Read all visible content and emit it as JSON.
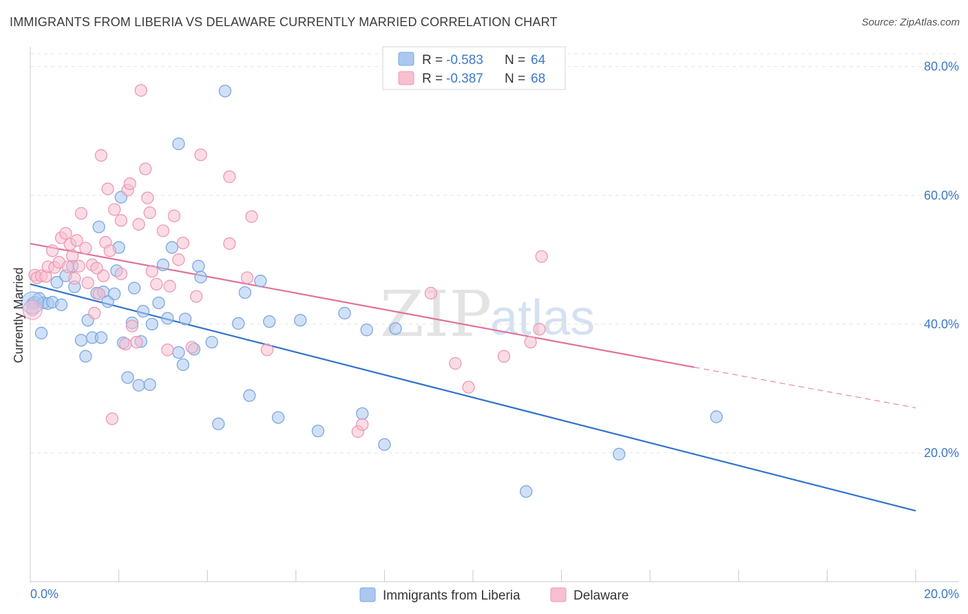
{
  "title": "IMMIGRANTS FROM LIBERIA VS DELAWARE CURRENTLY MARRIED CORRELATION CHART",
  "source": "Source: ZipAtlas.com",
  "watermark": {
    "zip": "ZIP",
    "atlas": "atlas"
  },
  "colors": {
    "blue_fill": "#aac8f0",
    "blue_stroke": "#7aa6e0",
    "blue_line": "#2f72cc",
    "pink_fill": "#f7bfd0",
    "pink_stroke": "#ec98b4",
    "pink_line": "#e0709a",
    "grid": "#e3e3e3",
    "axis_text": "#3d78c8"
  },
  "legend": {
    "rows": [
      {
        "r_label": "R =",
        "r_value": "-0.583",
        "n_label": "N =",
        "n_value": "64"
      },
      {
        "r_label": "R =",
        "r_value": "-0.387",
        "n_label": "N =",
        "n_value": "68"
      }
    ]
  },
  "chart_data": {
    "type": "scatter",
    "title": "IMMIGRANTS FROM LIBERIA VS DELAWARE CURRENTLY MARRIED CORRELATION CHART",
    "xlabel": "",
    "ylabel": "Currently Married",
    "xlim": [
      0,
      20
    ],
    "ylim": [
      0,
      82
    ],
    "x_tick_labels": [
      "0.0%",
      "20.0%"
    ],
    "y_ticks": [
      20,
      40,
      60,
      80
    ],
    "y_tick_labels": [
      "20.0%",
      "40.0%",
      "60.0%",
      "80.0%"
    ],
    "grid": true,
    "legend_position": "top-center",
    "series": [
      {
        "name": "Immigrants from Liberia",
        "color": "#aac8f0",
        "trend": {
          "x": [
            0,
            20
          ],
          "y": [
            46.2,
            11.0
          ],
          "dashed_from_x": null
        },
        "points": [
          [
            0.05,
            43.2
          ],
          [
            0.1,
            43.4
          ],
          [
            0.2,
            44.0
          ],
          [
            0.25,
            38.6
          ],
          [
            0.3,
            43.3
          ],
          [
            0.4,
            43.2
          ],
          [
            0.5,
            43.4
          ],
          [
            0.6,
            46.5
          ],
          [
            0.7,
            43.0
          ],
          [
            0.8,
            47.5
          ],
          [
            0.95,
            49.0
          ],
          [
            1.0,
            45.8
          ],
          [
            1.15,
            37.5
          ],
          [
            1.25,
            35.0
          ],
          [
            1.3,
            40.6
          ],
          [
            1.4,
            37.9
          ],
          [
            1.5,
            44.8
          ],
          [
            1.55,
            55.1
          ],
          [
            1.6,
            37.9
          ],
          [
            1.65,
            45.0
          ],
          [
            1.75,
            43.5
          ],
          [
            1.9,
            44.7
          ],
          [
            1.95,
            48.3
          ],
          [
            2.0,
            51.9
          ],
          [
            2.05,
            59.7
          ],
          [
            2.1,
            37.1
          ],
          [
            2.2,
            31.7
          ],
          [
            2.3,
            40.2
          ],
          [
            2.35,
            45.6
          ],
          [
            2.45,
            30.5
          ],
          [
            2.5,
            37.3
          ],
          [
            2.55,
            42.0
          ],
          [
            2.7,
            30.6
          ],
          [
            2.75,
            40.0
          ],
          [
            2.9,
            43.3
          ],
          [
            3.0,
            49.2
          ],
          [
            3.1,
            40.9
          ],
          [
            3.2,
            51.9
          ],
          [
            3.35,
            35.6
          ],
          [
            3.45,
            33.7
          ],
          [
            3.5,
            40.8
          ],
          [
            3.7,
            36.1
          ],
          [
            3.8,
            49.0
          ],
          [
            3.85,
            47.3
          ],
          [
            4.1,
            37.2
          ],
          [
            4.25,
            24.5
          ],
          [
            4.4,
            76.2
          ],
          [
            4.7,
            40.1
          ],
          [
            4.85,
            44.9
          ],
          [
            4.95,
            28.9
          ],
          [
            5.2,
            46.7
          ],
          [
            5.4,
            40.4
          ],
          [
            5.6,
            25.5
          ],
          [
            6.1,
            40.6
          ],
          [
            6.5,
            23.4
          ],
          [
            7.1,
            41.7
          ],
          [
            7.5,
            26.1
          ],
          [
            7.6,
            39.1
          ],
          [
            8.0,
            21.3
          ],
          [
            8.25,
            39.3
          ],
          [
            11.2,
            14.0
          ],
          [
            13.3,
            19.8
          ],
          [
            15.5,
            25.6
          ],
          [
            3.35,
            68.0
          ]
        ]
      },
      {
        "name": "Delaware",
        "color": "#f7bfd0",
        "trend": {
          "x": [
            0,
            15
          ],
          "y": [
            52.5,
            33.3
          ],
          "dashed_from_x": 15,
          "dashed_to": [
            20,
            27.0
          ]
        },
        "points": [
          [
            0.05,
            42.2
          ],
          [
            0.1,
            47.6
          ],
          [
            0.15,
            47.2
          ],
          [
            0.25,
            47.5
          ],
          [
            0.35,
            47.4
          ],
          [
            0.4,
            48.9
          ],
          [
            0.5,
            51.4
          ],
          [
            0.55,
            48.8
          ],
          [
            0.65,
            49.6
          ],
          [
            0.7,
            53.4
          ],
          [
            0.8,
            54.1
          ],
          [
            0.85,
            48.9
          ],
          [
            0.9,
            52.4
          ],
          [
            1.0,
            47.1
          ],
          [
            1.05,
            53.0
          ],
          [
            1.1,
            49.0
          ],
          [
            1.15,
            57.2
          ],
          [
            1.25,
            51.8
          ],
          [
            1.3,
            46.4
          ],
          [
            1.4,
            49.2
          ],
          [
            1.45,
            41.7
          ],
          [
            1.55,
            44.7
          ],
          [
            1.6,
            66.2
          ],
          [
            1.65,
            47.5
          ],
          [
            1.7,
            52.7
          ],
          [
            1.75,
            61.0
          ],
          [
            1.8,
            51.4
          ],
          [
            1.85,
            25.3
          ],
          [
            1.9,
            57.8
          ],
          [
            2.05,
            56.1
          ],
          [
            2.15,
            36.9
          ],
          [
            2.2,
            60.8
          ],
          [
            2.25,
            61.8
          ],
          [
            2.3,
            39.7
          ],
          [
            2.45,
            55.5
          ],
          [
            2.5,
            76.3
          ],
          [
            2.6,
            64.1
          ],
          [
            2.65,
            59.6
          ],
          [
            2.7,
            57.3
          ],
          [
            2.75,
            48.2
          ],
          [
            2.85,
            46.2
          ],
          [
            3.0,
            54.5
          ],
          [
            3.1,
            36.0
          ],
          [
            3.15,
            45.9
          ],
          [
            3.25,
            56.8
          ],
          [
            3.35,
            50.0
          ],
          [
            3.45,
            52.6
          ],
          [
            3.75,
            44.3
          ],
          [
            3.85,
            66.3
          ],
          [
            4.5,
            62.9
          ],
          [
            4.5,
            52.5
          ],
          [
            4.9,
            47.2
          ],
          [
            5.0,
            56.7
          ],
          [
            5.35,
            36.0
          ],
          [
            7.4,
            23.3
          ],
          [
            7.5,
            24.4
          ],
          [
            9.05,
            44.8
          ],
          [
            9.6,
            33.9
          ],
          [
            9.9,
            30.2
          ],
          [
            10.7,
            35.0
          ],
          [
            11.3,
            37.2
          ],
          [
            11.5,
            39.2
          ],
          [
            11.55,
            50.5
          ],
          [
            2.4,
            37.2
          ],
          [
            3.65,
            36.4
          ],
          [
            1.5,
            48.7
          ],
          [
            0.95,
            50.6
          ],
          [
            2.05,
            47.8
          ]
        ]
      }
    ]
  },
  "bottom_legend": [
    {
      "label": "Immigrants from Liberia"
    },
    {
      "label": "Delaware"
    }
  ]
}
